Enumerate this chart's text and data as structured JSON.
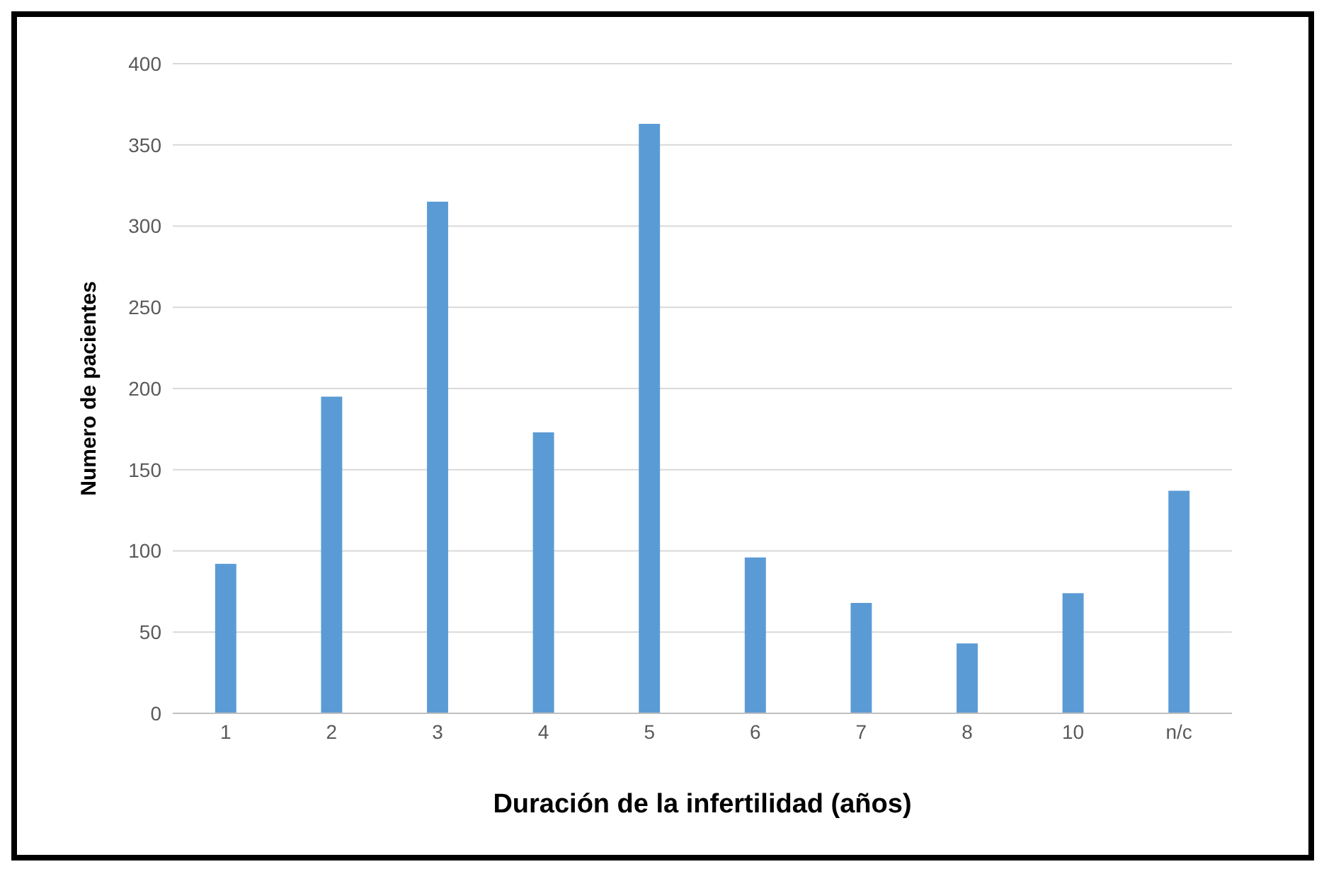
{
  "chart_data": {
    "type": "bar",
    "xlabel": "Duración de la infertilidad (años)",
    "ylabel": "Numero de pacientes",
    "categories": [
      "1",
      "2",
      "3",
      "4",
      "5",
      "6",
      "7",
      "8",
      "10",
      "n/c"
    ],
    "values": [
      92,
      195,
      315,
      173,
      363,
      96,
      68,
      43,
      74,
      137
    ],
    "color": "#5b9bd5",
    "ylim": [
      0,
      400
    ],
    "yticks": [
      0,
      50,
      100,
      150,
      200,
      250,
      300,
      350,
      400
    ],
    "grid": "y"
  }
}
